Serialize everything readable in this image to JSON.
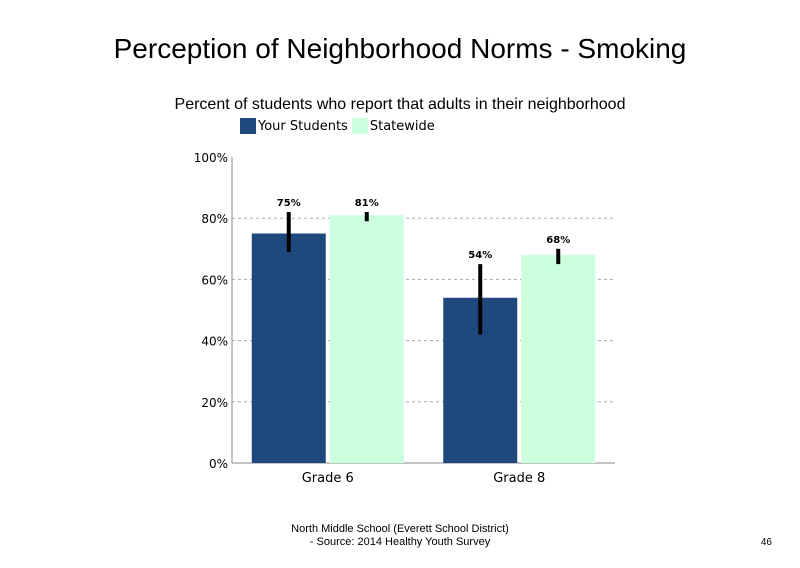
{
  "chart_data": {
    "type": "bar",
    "title": "Perception of Neighborhood Norms - Smoking",
    "subtitle": "Percent of students who report that adults in their neighborhood",
    "categories": [
      "Grade 6",
      "Grade 8"
    ],
    "series": [
      {
        "name": "Your Students",
        "values": [
          75,
          54
        ],
        "labels": [
          "75%",
          "54%"
        ],
        "error_low": [
          69,
          42
        ],
        "error_high": [
          82,
          65
        ],
        "color": "#1f497d"
      },
      {
        "name": "Statewide",
        "values": [
          81,
          68
        ],
        "labels": [
          "81%",
          "68%"
        ],
        "error_low": [
          79,
          65
        ],
        "error_high": [
          82,
          70
        ],
        "color": "#ccffdd"
      }
    ],
    "ylim": [
      0,
      100
    ],
    "yticks": [
      "0%",
      "20%",
      "40%",
      "60%",
      "80%",
      "100%"
    ],
    "grid": true,
    "legend_position": "top"
  },
  "footer": {
    "line1": "North Middle School (Everett School District)",
    "line2": "- Source: 2014 Healthy Youth Survey"
  },
  "page_number": "46"
}
